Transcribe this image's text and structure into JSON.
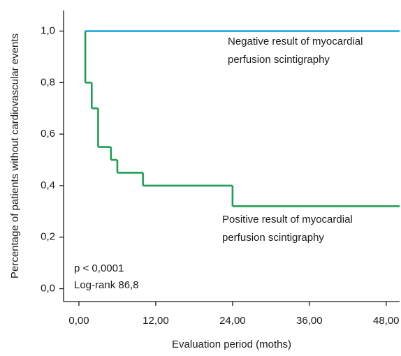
{
  "chart_data": {
    "type": "step",
    "xlabel": "Evaluation period (moths)",
    "ylabel": "Percentage of patients without cardiovascular events",
    "xlim": [
      -2.4,
      50.1
    ],
    "ylim": [
      -0.05,
      1.08
    ],
    "xticks": [
      {
        "value": 0,
        "label": "0,00"
      },
      {
        "value": 12,
        "label": "12,00"
      },
      {
        "value": 24,
        "label": "24,00"
      },
      {
        "value": 36,
        "label": "36,00"
      },
      {
        "value": 48,
        "label": "48,00"
      }
    ],
    "yticks": [
      {
        "value": 0,
        "label": "0,0"
      },
      {
        "value": 0.2,
        "label": "0,2"
      },
      {
        "value": 0.4,
        "label": "0,4"
      },
      {
        "value": 0.6,
        "label": "0,6"
      },
      {
        "value": 0.8,
        "label": "0,8"
      },
      {
        "value": 1.0,
        "label": "1,0"
      }
    ],
    "series": [
      {
        "label_lines": [
          "Negative result of myocardial",
          "perfusion scintigraphy"
        ],
        "color": "#1ba9e0",
        "x": [
          1
        ],
        "values": [
          1.0
        ]
      },
      {
        "label_lines": [
          "Positive result of myocardial",
          "perfusion scintigraphy"
        ],
        "color": "#1f9e55",
        "x": [
          1,
          1,
          2,
          3,
          5,
          6,
          10,
          24
        ],
        "values": [
          1.0,
          0.8,
          0.7,
          0.55,
          0.5,
          0.45,
          0.4,
          0.32
        ]
      }
    ],
    "annotations": [
      "p < 0,0001",
      "Log-rank 86,8"
    ]
  }
}
